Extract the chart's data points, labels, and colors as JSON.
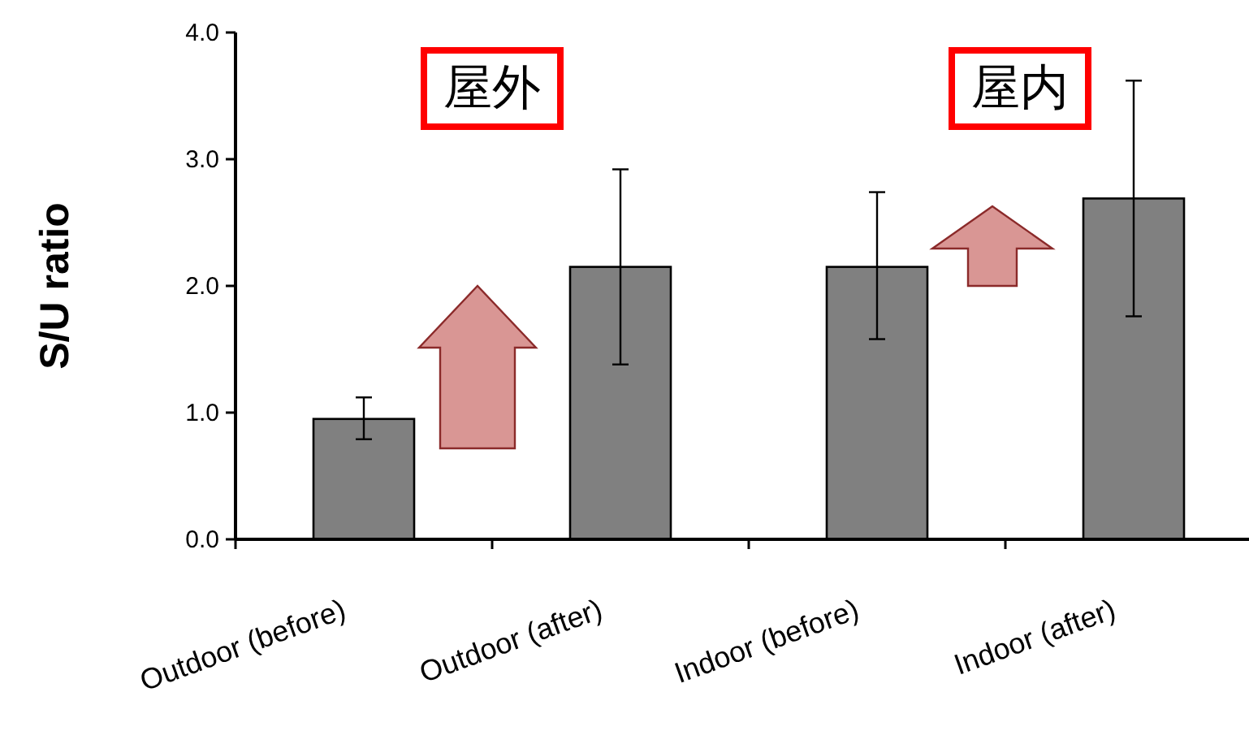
{
  "chart_data": {
    "type": "bar",
    "ylabel": "S/U ratio",
    "categories": [
      "Outdoor (before)",
      "Outdoor (after)",
      "Indoor (before)",
      "Indoor (after)"
    ],
    "values": [
      0.95,
      2.15,
      2.15,
      2.69
    ],
    "errors": [
      [
        0.79,
        1.12
      ],
      [
        1.38,
        2.92
      ],
      [
        1.58,
        2.74
      ],
      [
        1.76,
        3.62
      ]
    ],
    "color": "#808080",
    "ylim": [
      0,
      4
    ],
    "yticks": [
      {
        "value": 0,
        "label": "0.0"
      },
      {
        "value": 1,
        "label": "1.0"
      },
      {
        "value": 2,
        "label": "2.0"
      },
      {
        "value": 3,
        "label": "3.0"
      },
      {
        "value": 4,
        "label": "4.0"
      }
    ],
    "annotations": [
      "屋外",
      "屋内"
    ]
  }
}
